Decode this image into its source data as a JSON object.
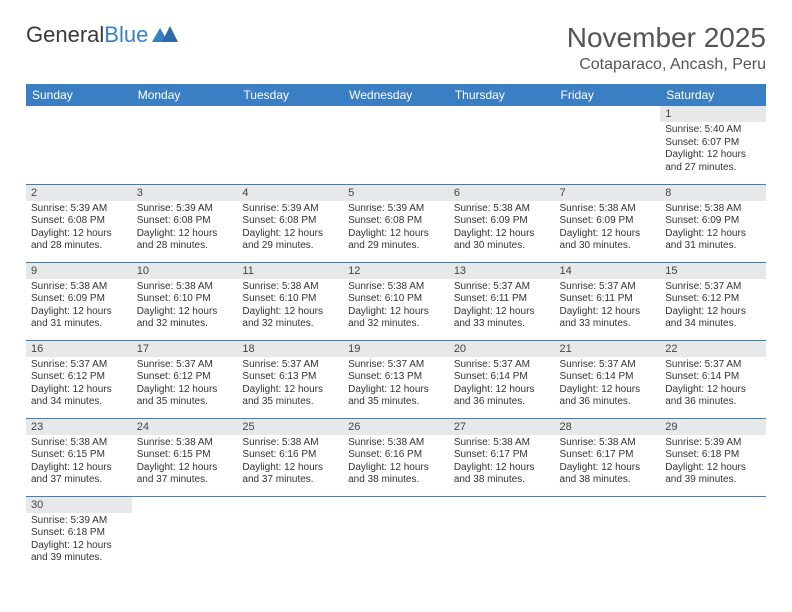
{
  "brand": {
    "name_a": "General",
    "name_b": "Blue"
  },
  "title": "November 2025",
  "location": "Cotaparaco, Ancash, Peru",
  "colors": {
    "accent": "#3a7fc4",
    "daynum_bg": "#e7e8e9",
    "text": "#333333"
  },
  "day_headers": [
    "Sunday",
    "Monday",
    "Tuesday",
    "Wednesday",
    "Thursday",
    "Friday",
    "Saturday"
  ],
  "weeks": [
    [
      null,
      null,
      null,
      null,
      null,
      null,
      {
        "n": "1",
        "sr": "5:40 AM",
        "ss": "6:07 PM",
        "dl": "12 hours and 27 minutes."
      }
    ],
    [
      {
        "n": "2",
        "sr": "5:39 AM",
        "ss": "6:08 PM",
        "dl": "12 hours and 28 minutes."
      },
      {
        "n": "3",
        "sr": "5:39 AM",
        "ss": "6:08 PM",
        "dl": "12 hours and 28 minutes."
      },
      {
        "n": "4",
        "sr": "5:39 AM",
        "ss": "6:08 PM",
        "dl": "12 hours and 29 minutes."
      },
      {
        "n": "5",
        "sr": "5:39 AM",
        "ss": "6:08 PM",
        "dl": "12 hours and 29 minutes."
      },
      {
        "n": "6",
        "sr": "5:38 AM",
        "ss": "6:09 PM",
        "dl": "12 hours and 30 minutes."
      },
      {
        "n": "7",
        "sr": "5:38 AM",
        "ss": "6:09 PM",
        "dl": "12 hours and 30 minutes."
      },
      {
        "n": "8",
        "sr": "5:38 AM",
        "ss": "6:09 PM",
        "dl": "12 hours and 31 minutes."
      }
    ],
    [
      {
        "n": "9",
        "sr": "5:38 AM",
        "ss": "6:09 PM",
        "dl": "12 hours and 31 minutes."
      },
      {
        "n": "10",
        "sr": "5:38 AM",
        "ss": "6:10 PM",
        "dl": "12 hours and 32 minutes."
      },
      {
        "n": "11",
        "sr": "5:38 AM",
        "ss": "6:10 PM",
        "dl": "12 hours and 32 minutes."
      },
      {
        "n": "12",
        "sr": "5:38 AM",
        "ss": "6:10 PM",
        "dl": "12 hours and 32 minutes."
      },
      {
        "n": "13",
        "sr": "5:37 AM",
        "ss": "6:11 PM",
        "dl": "12 hours and 33 minutes."
      },
      {
        "n": "14",
        "sr": "5:37 AM",
        "ss": "6:11 PM",
        "dl": "12 hours and 33 minutes."
      },
      {
        "n": "15",
        "sr": "5:37 AM",
        "ss": "6:12 PM",
        "dl": "12 hours and 34 minutes."
      }
    ],
    [
      {
        "n": "16",
        "sr": "5:37 AM",
        "ss": "6:12 PM",
        "dl": "12 hours and 34 minutes."
      },
      {
        "n": "17",
        "sr": "5:37 AM",
        "ss": "6:12 PM",
        "dl": "12 hours and 35 minutes."
      },
      {
        "n": "18",
        "sr": "5:37 AM",
        "ss": "6:13 PM",
        "dl": "12 hours and 35 minutes."
      },
      {
        "n": "19",
        "sr": "5:37 AM",
        "ss": "6:13 PM",
        "dl": "12 hours and 35 minutes."
      },
      {
        "n": "20",
        "sr": "5:37 AM",
        "ss": "6:14 PM",
        "dl": "12 hours and 36 minutes."
      },
      {
        "n": "21",
        "sr": "5:37 AM",
        "ss": "6:14 PM",
        "dl": "12 hours and 36 minutes."
      },
      {
        "n": "22",
        "sr": "5:37 AM",
        "ss": "6:14 PM",
        "dl": "12 hours and 36 minutes."
      }
    ],
    [
      {
        "n": "23",
        "sr": "5:38 AM",
        "ss": "6:15 PM",
        "dl": "12 hours and 37 minutes."
      },
      {
        "n": "24",
        "sr": "5:38 AM",
        "ss": "6:15 PM",
        "dl": "12 hours and 37 minutes."
      },
      {
        "n": "25",
        "sr": "5:38 AM",
        "ss": "6:16 PM",
        "dl": "12 hours and 37 minutes."
      },
      {
        "n": "26",
        "sr": "5:38 AM",
        "ss": "6:16 PM",
        "dl": "12 hours and 38 minutes."
      },
      {
        "n": "27",
        "sr": "5:38 AM",
        "ss": "6:17 PM",
        "dl": "12 hours and 38 minutes."
      },
      {
        "n": "28",
        "sr": "5:38 AM",
        "ss": "6:17 PM",
        "dl": "12 hours and 38 minutes."
      },
      {
        "n": "29",
        "sr": "5:39 AM",
        "ss": "6:18 PM",
        "dl": "12 hours and 39 minutes."
      }
    ],
    [
      {
        "n": "30",
        "sr": "5:39 AM",
        "ss": "6:18 PM",
        "dl": "12 hours and 39 minutes."
      },
      null,
      null,
      null,
      null,
      null,
      null
    ]
  ],
  "labels": {
    "sunrise": "Sunrise:",
    "sunset": "Sunset:",
    "daylight": "Daylight:"
  }
}
